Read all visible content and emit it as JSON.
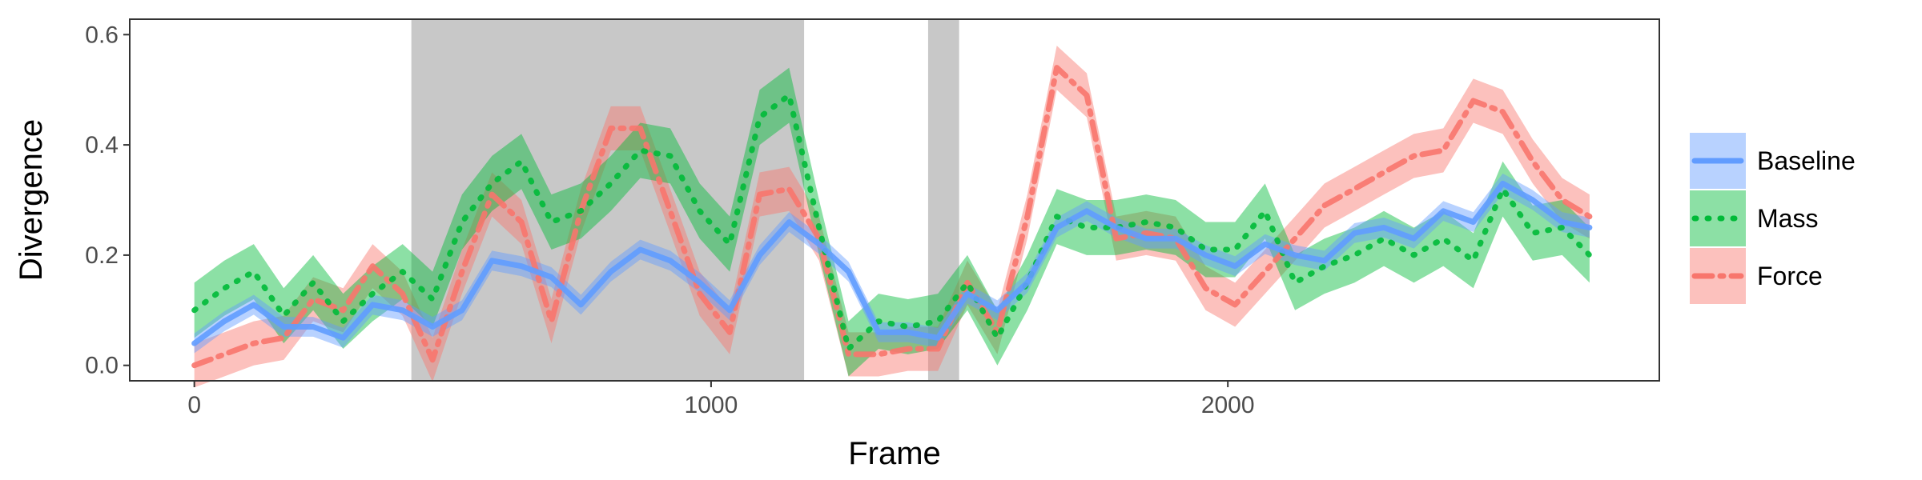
{
  "chart_data": {
    "type": "line",
    "title": "",
    "xlabel": "Frame",
    "ylabel": "Divergence",
    "xlim": [
      -125,
      2835
    ],
    "ylim": [
      -0.028,
      0.628
    ],
    "x_ticks": [
      0,
      1000,
      2000
    ],
    "x_tick_labels": [
      "0",
      "1000",
      "2000"
    ],
    "y_ticks": [
      0.0,
      0.2,
      0.4,
      0.6
    ],
    "y_tick_labels": [
      "0.0",
      "0.2",
      "0.4",
      "0.6"
    ],
    "grid": false,
    "legend_position": "right",
    "shaded_regions": [
      [
        420,
        1180
      ],
      [
        1420,
        1480
      ]
    ],
    "shade_color": "#c8c8c8",
    "x": [
      0,
      58,
      115,
      173,
      230,
      288,
      345,
      403,
      461,
      518,
      576,
      633,
      691,
      748,
      806,
      863,
      921,
      978,
      1036,
      1094,
      1151,
      1209,
      1266,
      1324,
      1381,
      1439,
      1496,
      1554,
      1612,
      1669,
      1727,
      1784,
      1842,
      1899,
      1957,
      2014,
      2072,
      2130,
      2187,
      2245,
      2302,
      2360,
      2417,
      2475,
      2532,
      2590,
      2647,
      2700
    ],
    "series": [
      {
        "name": "Baseline",
        "color": "#619cff",
        "dash": "solid",
        "values": [
          0.04,
          0.08,
          0.11,
          0.07,
          0.07,
          0.05,
          0.11,
          0.1,
          0.07,
          0.1,
          0.19,
          0.18,
          0.16,
          0.11,
          0.17,
          0.21,
          0.19,
          0.15,
          0.1,
          0.2,
          0.26,
          0.22,
          0.17,
          0.06,
          0.06,
          0.05,
          0.13,
          0.1,
          0.15,
          0.25,
          0.28,
          0.25,
          0.23,
          0.23,
          0.2,
          0.18,
          0.22,
          0.2,
          0.19,
          0.24,
          0.25,
          0.23,
          0.28,
          0.26,
          0.33,
          0.3,
          0.26,
          0.25
        ],
        "band": 0.018
      },
      {
        "name": "Mass",
        "color": "#00ba38",
        "dash": "dotted",
        "values": [
          0.1,
          0.14,
          0.17,
          0.09,
          0.15,
          0.08,
          0.13,
          0.17,
          0.12,
          0.26,
          0.33,
          0.37,
          0.26,
          0.28,
          0.33,
          0.39,
          0.38,
          0.28,
          0.22,
          0.45,
          0.49,
          0.25,
          0.03,
          0.08,
          0.07,
          0.08,
          0.15,
          0.05,
          0.15,
          0.27,
          0.25,
          0.25,
          0.26,
          0.25,
          0.21,
          0.21,
          0.28,
          0.15,
          0.18,
          0.2,
          0.23,
          0.2,
          0.23,
          0.19,
          0.32,
          0.24,
          0.25,
          0.2
        ],
        "band": 0.05
      },
      {
        "name": "Force",
        "color": "#f8766d",
        "dash": "dashdot",
        "values": [
          0.0,
          0.02,
          0.04,
          0.05,
          0.12,
          0.1,
          0.18,
          0.13,
          0.01,
          0.17,
          0.31,
          0.26,
          0.08,
          0.28,
          0.43,
          0.43,
          0.28,
          0.13,
          0.06,
          0.31,
          0.32,
          0.23,
          0.02,
          0.02,
          0.03,
          0.03,
          0.15,
          0.06,
          0.27,
          0.54,
          0.49,
          0.23,
          0.24,
          0.23,
          0.14,
          0.11,
          0.17,
          0.23,
          0.29,
          0.32,
          0.35,
          0.38,
          0.39,
          0.48,
          0.46,
          0.37,
          0.3,
          0.27
        ],
        "band": 0.04
      }
    ]
  }
}
